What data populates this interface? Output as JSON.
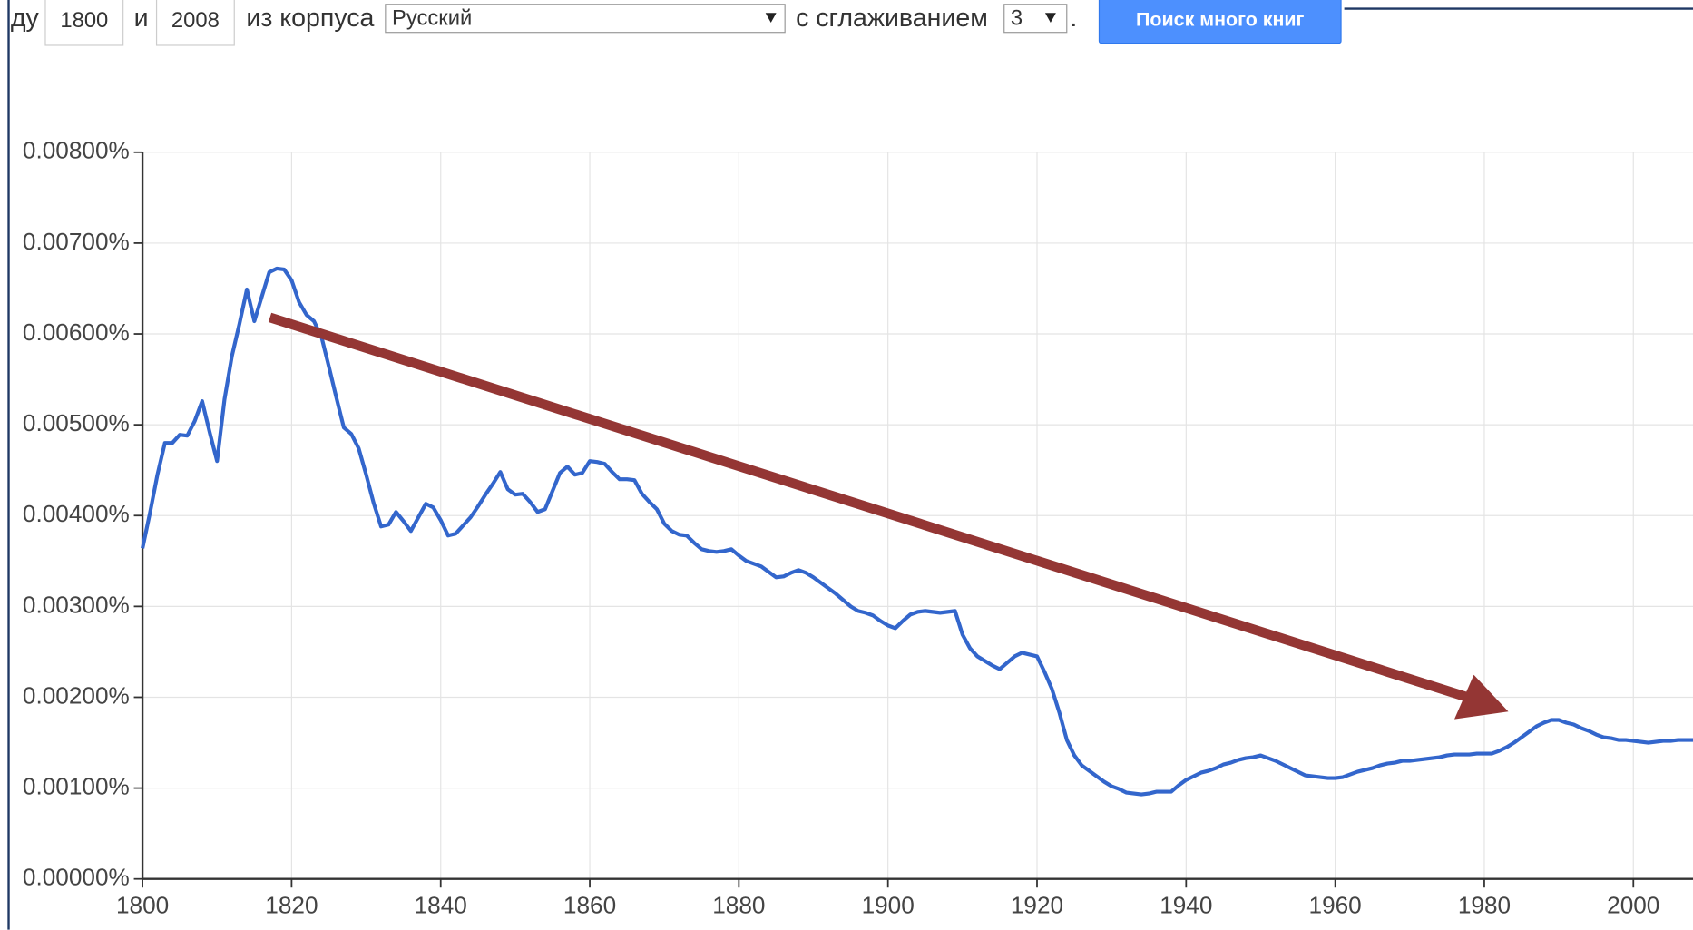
{
  "header": {
    "prefix": "ду",
    "year_from": "1800",
    "conj": "и",
    "year_to": "2008",
    "corpus_label": "из корпуса",
    "corpus": "Русский",
    "smoothing_label": "с сглаживанием",
    "smoothing": "3",
    "period": ".",
    "button": "Поиск много книг"
  },
  "chart_data": {
    "type": "line",
    "x": [
      1800,
      1801,
      1802,
      1803,
      1804,
      1805,
      1806,
      1807,
      1808,
      1809,
      1810,
      1811,
      1812,
      1813,
      1814,
      1815,
      1816,
      1817,
      1818,
      1819,
      1820,
      1821,
      1822,
      1823,
      1824,
      1825,
      1826,
      1827,
      1828,
      1829,
      1830,
      1831,
      1832,
      1833,
      1834,
      1835,
      1836,
      1837,
      1838,
      1839,
      1840,
      1841,
      1842,
      1843,
      1844,
      1845,
      1846,
      1847,
      1848,
      1849,
      1850,
      1851,
      1852,
      1853,
      1854,
      1855,
      1856,
      1857,
      1858,
      1859,
      1860,
      1861,
      1862,
      1863,
      1864,
      1865,
      1866,
      1867,
      1868,
      1869,
      1870,
      1871,
      1872,
      1873,
      1874,
      1875,
      1876,
      1877,
      1878,
      1879,
      1880,
      1881,
      1882,
      1883,
      1884,
      1885,
      1886,
      1887,
      1888,
      1889,
      1890,
      1891,
      1892,
      1893,
      1894,
      1895,
      1896,
      1897,
      1898,
      1899,
      1900,
      1901,
      1902,
      1903,
      1904,
      1905,
      1906,
      1907,
      1908,
      1909,
      1910,
      1911,
      1912,
      1913,
      1914,
      1915,
      1916,
      1917,
      1918,
      1919,
      1920,
      1921,
      1922,
      1923,
      1924,
      1925,
      1926,
      1927,
      1928,
      1929,
      1930,
      1931,
      1932,
      1933,
      1934,
      1935,
      1936,
      1937,
      1938,
      1939,
      1940,
      1941,
      1942,
      1943,
      1944,
      1945,
      1946,
      1947,
      1948,
      1949,
      1950,
      1951,
      1952,
      1953,
      1954,
      1955,
      1956,
      1957,
      1958,
      1959,
      1960,
      1961,
      1962,
      1963,
      1964,
      1965,
      1966,
      1967,
      1968,
      1969,
      1970,
      1971,
      1972,
      1973,
      1974,
      1975,
      1976,
      1977,
      1978,
      1979,
      1980,
      1981,
      1982,
      1983,
      1984,
      1985,
      1986,
      1987,
      1988,
      1989,
      1990,
      1991,
      1992,
      1993,
      1994,
      1995,
      1996,
      1997,
      1998,
      1999,
      2000,
      2001,
      2002,
      2003,
      2004,
      2005,
      2006,
      2007,
      2008
    ],
    "series": [
      {
        "color": "#3366cc",
        "values": [
          0.00364,
          0.00403,
          0.00445,
          0.0048,
          0.0048,
          0.00489,
          0.00488,
          0.00504,
          0.00526,
          0.00492,
          0.0046,
          0.00528,
          0.00576,
          0.00611,
          0.00649,
          0.00614,
          0.00641,
          0.00668,
          0.00672,
          0.00671,
          0.00659,
          0.00635,
          0.00621,
          0.00614,
          0.00597,
          0.00564,
          0.0053,
          0.00497,
          0.0049,
          0.00474,
          0.00445,
          0.00414,
          0.00388,
          0.0039,
          0.00404,
          0.00394,
          0.00383,
          0.00398,
          0.00413,
          0.00409,
          0.00395,
          0.00378,
          0.0038,
          0.00389,
          0.00398,
          0.0041,
          0.00423,
          0.00435,
          0.00448,
          0.00429,
          0.00423,
          0.00424,
          0.00415,
          0.00404,
          0.00407,
          0.00427,
          0.00447,
          0.00454,
          0.00445,
          0.00447,
          0.0046,
          0.00459,
          0.00457,
          0.00448,
          0.0044,
          0.0044,
          0.00439,
          0.00424,
          0.00415,
          0.00407,
          0.00391,
          0.00383,
          0.00379,
          0.00378,
          0.0037,
          0.00363,
          0.00361,
          0.0036,
          0.00361,
          0.00363,
          0.00356,
          0.0035,
          0.00347,
          0.00344,
          0.00338,
          0.00332,
          0.00333,
          0.00337,
          0.0034,
          0.00337,
          0.00332,
          0.00326,
          0.0032,
          0.00314,
          0.00307,
          0.003,
          0.00295,
          0.00293,
          0.0029,
          0.00284,
          0.00279,
          0.00276,
          0.00284,
          0.00291,
          0.00294,
          0.00295,
          0.00294,
          0.00293,
          0.00294,
          0.00295,
          0.00269,
          0.00254,
          0.00245,
          0.0024,
          0.00235,
          0.00231,
          0.00238,
          0.00245,
          0.00249,
          0.00247,
          0.00245,
          0.00228,
          0.00209,
          0.00183,
          0.00153,
          0.00136,
          0.00125,
          0.00119,
          0.00113,
          0.00107,
          0.00102,
          0.00099,
          0.00095,
          0.00094,
          0.00093,
          0.00094,
          0.00096,
          0.00096,
          0.00096,
          0.00103,
          0.00109,
          0.00113,
          0.00117,
          0.00119,
          0.00122,
          0.00126,
          0.00128,
          0.00131,
          0.00133,
          0.00134,
          0.00136,
          0.00133,
          0.0013,
          0.00126,
          0.00122,
          0.00118,
          0.00114,
          0.00113,
          0.00112,
          0.00111,
          0.00111,
          0.00112,
          0.00115,
          0.00118,
          0.0012,
          0.00122,
          0.00125,
          0.00127,
          0.00128,
          0.0013,
          0.0013,
          0.00131,
          0.00132,
          0.00133,
          0.00134,
          0.00136,
          0.00137,
          0.00137,
          0.00137,
          0.00138,
          0.00138,
          0.00138,
          0.00141,
          0.00145,
          0.0015,
          0.00156,
          0.00162,
          0.00168,
          0.00172,
          0.00175,
          0.00175,
          0.00172,
          0.0017,
          0.00166,
          0.00163,
          0.00159,
          0.00156,
          0.00155,
          0.00153,
          0.00153,
          0.00152,
          0.00151,
          0.0015,
          0.00151,
          0.00152,
          0.00152,
          0.00153,
          0.00153,
          0.00153
        ]
      }
    ],
    "xlim": [
      1800,
      2008
    ],
    "ylim": [
      0,
      0.008
    ],
    "xticks": [
      1800,
      1820,
      1840,
      1860,
      1880,
      1900,
      1920,
      1940,
      1960,
      1980,
      2000
    ],
    "yticks": [
      {
        "value": 0,
        "label": "0.00000%"
      },
      {
        "value": 0.001,
        "label": "0.00100%"
      },
      {
        "value": 0.002,
        "label": "0.00200%"
      },
      {
        "value": 0.003,
        "label": "0.00300%"
      },
      {
        "value": 0.004,
        "label": "0.00400%"
      },
      {
        "value": 0.005,
        "label": "0.00500%"
      },
      {
        "value": 0.006,
        "label": "0.00600%"
      },
      {
        "value": 0.007,
        "label": "0.00700%"
      },
      {
        "value": 0.008,
        "label": "0.00800%"
      }
    ],
    "grid": true
  }
}
